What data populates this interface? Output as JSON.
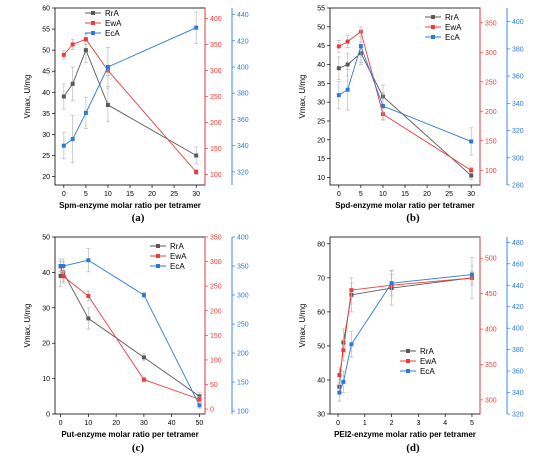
{
  "colors": {
    "RrA": "#595959",
    "EwA": "#ef3b39",
    "EcA": "#2b7bd6"
  },
  "chart_data": [
    {
      "type": "line",
      "xlabel": "Spm-enzyme molar ratio per tetramer",
      "ylabel": "Vmax, U/mg",
      "caption": "(a)",
      "xlim": [
        -2,
        32
      ],
      "xticks": [
        0,
        5,
        10,
        15,
        20,
        25,
        30
      ],
      "ylim": [
        18,
        60
      ],
      "yticks": [
        20,
        25,
        30,
        35,
        40,
        45,
        50,
        55,
        60
      ],
      "y2lim": [
        80,
        420
      ],
      "y2ticks": [
        100,
        150,
        200,
        250,
        300,
        350,
        400
      ],
      "y3lim": [
        310,
        445
      ],
      "y3ticks": [
        320,
        340,
        360,
        380,
        400,
        420,
        440
      ],
      "legend": "top-left",
      "series": [
        {
          "name": "RrA",
          "axis": "left",
          "x": [
            0,
            2,
            5,
            10,
            30
          ],
          "y": [
            39,
            42,
            50,
            37,
            25
          ],
          "err": [
            3,
            4,
            3,
            4,
            2
          ]
        },
        {
          "name": "EwA",
          "axis": "right",
          "x": [
            0,
            2,
            5,
            10,
            30
          ],
          "y": [
            330,
            350,
            360,
            300,
            105
          ],
          "err": [
            8,
            10,
            10,
            10,
            5
          ]
        },
        {
          "name": "EcA",
          "axis": "right2",
          "x": [
            0,
            2,
            5,
            10,
            30
          ],
          "y": [
            340,
            345,
            365,
            400,
            430
          ],
          "err": [
            10,
            18,
            12,
            15,
            12
          ]
        }
      ]
    },
    {
      "type": "line",
      "xlabel": "Spd-enzyme molar ratio per tetramer",
      "ylabel": "Vmax, U/mg",
      "caption": "(b)",
      "xlim": [
        -2,
        32
      ],
      "xticks": [
        0,
        5,
        10,
        15,
        20,
        25,
        30
      ],
      "ylim": [
        8,
        55
      ],
      "yticks": [
        10,
        15,
        20,
        25,
        30,
        35,
        40,
        45,
        50,
        55
      ],
      "y2lim": [
        75,
        375
      ],
      "y2ticks": [
        100,
        150,
        200,
        250,
        300,
        350
      ],
      "y3lim": [
        280,
        410
      ],
      "y3ticks": [
        280,
        300,
        320,
        340,
        360,
        380,
        400
      ],
      "legend": "top-right",
      "series": [
        {
          "name": "RrA",
          "axis": "left",
          "x": [
            0,
            2,
            5,
            10,
            30
          ],
          "y": [
            39,
            40,
            43,
            31.5,
            10.5
          ],
          "err": [
            3,
            3,
            3,
            3,
            1
          ]
        },
        {
          "name": "EwA",
          "axis": "right",
          "x": [
            0,
            2,
            5,
            10,
            30
          ],
          "y": [
            310,
            318,
            335,
            195,
            100
          ],
          "err": [
            10,
            10,
            8,
            10,
            5
          ]
        },
        {
          "name": "EcA",
          "axis": "right2",
          "x": [
            0,
            2,
            5,
            10,
            30
          ],
          "y": [
            346,
            350,
            382,
            338,
            312
          ],
          "err": [
            10,
            15,
            12,
            10,
            10
          ]
        }
      ]
    },
    {
      "type": "line",
      "xlabel": "Put-enzyme molar ratio per tetramer",
      "ylabel": "Vmax, U/mg",
      "caption": "(c)",
      "xlim": [
        -2,
        52
      ],
      "xticks": [
        0,
        10,
        20,
        30,
        40,
        50
      ],
      "ylim": [
        0,
        50
      ],
      "yticks": [
        0,
        10,
        20,
        30,
        40,
        50
      ],
      "y2lim": [
        -10,
        350
      ],
      "y2ticks": [
        0,
        50,
        100,
        150,
        200,
        250,
        300,
        350
      ],
      "y3lim": [
        95,
        400
      ],
      "y3ticks": [
        100,
        150,
        200,
        250,
        300,
        350,
        400
      ],
      "legend": "top-right",
      "series": [
        {
          "name": "RrA",
          "axis": "left",
          "x": [
            0,
            1,
            10,
            30,
            50
          ],
          "y": [
            39,
            40,
            27,
            16,
            5
          ],
          "err": [
            3,
            3,
            3,
            1,
            1
          ]
        },
        {
          "name": "EwA",
          "axis": "right",
          "x": [
            0,
            1,
            10,
            30,
            50
          ],
          "y": [
            290,
            270,
            230,
            60,
            20
          ],
          "err": [
            10,
            10,
            10,
            5,
            5
          ]
        },
        {
          "name": "EcA",
          "axis": "right2",
          "x": [
            0,
            1,
            10,
            30,
            50
          ],
          "y": [
            350,
            350,
            360,
            300,
            110
          ],
          "err": [
            12,
            12,
            20,
            5,
            5
          ]
        }
      ]
    },
    {
      "type": "line",
      "xlabel": "PEI2-enzyme molar ratio per tetramer",
      "ylabel": "Vmax, U/mg",
      "caption": "(d)",
      "xlim": [
        -0.3,
        5.3
      ],
      "xticks": [
        0,
        1,
        2,
        3,
        4,
        5
      ],
      "ylim": [
        30,
        82
      ],
      "yticks": [
        30,
        40,
        50,
        60,
        70,
        80
      ],
      "y2lim": [
        280,
        530
      ],
      "y2ticks": [
        300,
        350,
        400,
        450,
        500
      ],
      "y3lim": [
        320,
        485
      ],
      "y3ticks": [
        320,
        340,
        360,
        380,
        400,
        420,
        440,
        460,
        480
      ],
      "legend": "bottom-center",
      "series": [
        {
          "name": "RrA",
          "axis": "left",
          "x": [
            0.05,
            0.2,
            0.5,
            2,
            5
          ],
          "y": [
            38,
            51,
            65,
            67,
            70
          ],
          "err": [
            2,
            4,
            5,
            5,
            6
          ]
        },
        {
          "name": "EwA",
          "axis": "right",
          "x": [
            0.05,
            0.2,
            0.5,
            2,
            5
          ],
          "y": [
            335,
            370,
            455,
            462,
            472
          ],
          "err": [
            10,
            15,
            10,
            15,
            10
          ]
        },
        {
          "name": "EcA",
          "axis": "right2",
          "x": [
            0.05,
            0.2,
            0.5,
            2,
            5
          ],
          "y": [
            340,
            350,
            385,
            442,
            450
          ],
          "err": [
            8,
            10,
            12,
            12,
            8
          ]
        }
      ]
    }
  ]
}
